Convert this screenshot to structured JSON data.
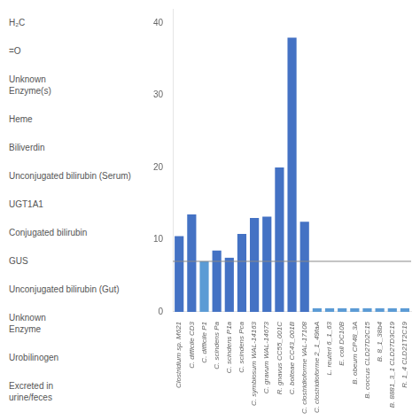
{
  "chart_data": {
    "type": "bar",
    "categories": [
      "Clostridium sp. M621",
      "C. difficile CD3",
      "C. difficile P1",
      "C. scindens Pa",
      "C. scindens P1a",
      "C. scindens Pca",
      "C. symbiosum WAL-14163",
      "C. gravum WAL-14673",
      "R. gnavus CC55_001C",
      "C. bolteae CC43_001B",
      "C. clostridioforme VAL-17108",
      "C. clostridioforme 2_1_49faA",
      "L. reuteri 6_1_63",
      "E. coli DC10B",
      "B. obeum CP48_3A",
      "B. coccus CLD27D2C15",
      "B. 8_1_38b4",
      "B. 8881_3_1 CLD27D3C19",
      "R. 1_4 CLD21T2C19"
    ],
    "values": [
      10.5,
      13.5,
      7.0,
      8.5,
      7.5,
      10.8,
      13.0,
      13.2,
      20.0,
      38.0,
      12.5,
      0.5,
      0.5,
      0.5,
      0.5,
      0.5,
      0.5,
      0.5,
      0.5
    ],
    "colors": [
      "#4472C4",
      "#4472C4",
      "#5B9BD5",
      "#4472C4",
      "#4472C4",
      "#4472C4",
      "#4472C4",
      "#4472C4",
      "#4472C4",
      "#4472C4",
      "#4472C4",
      "#5B9BD5",
      "#5B9BD5",
      "#5B9BD5",
      "#5B9BD5",
      "#5B9BD5",
      "#5B9BD5",
      "#5B9BD5",
      "#5B9BD5"
    ],
    "threshold": 7,
    "ylim": [
      0,
      42
    ],
    "yticks": [
      0,
      10,
      20,
      30,
      40
    ],
    "grid": false,
    "annotations": [
      "H₂C",
      "=O",
      "Unknown\nEnzyme(s)",
      "Heme",
      "Biliverdin",
      "Unconjugated bilirubin (Serum)",
      "UGT1A1",
      "Conjugated bilirubin",
      "GUS",
      "Unconjugated bilirubin (Gut)",
      "Unknown\nEnzyme",
      "Urobilinogen",
      "Excreted in\nurine/feces"
    ]
  }
}
